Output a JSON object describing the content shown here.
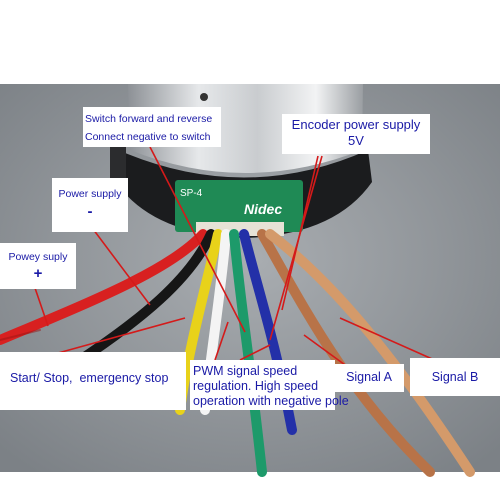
{
  "labels": {
    "switch_line1": "Switch forward and reverse",
    "switch_line2": "Connect negative to switch",
    "encoder_line1": "Encoder power supply",
    "encoder_line2": "5V",
    "power_negative_text": "Power supply",
    "power_negative_sign": "-",
    "power_positive_text": "Powey suply",
    "power_positive_sign": "+",
    "start_stop": "Start/ Stop,  emergency stop",
    "pwm_line1": "PWM signal speed",
    "pwm_line2": "regulation. High speed",
    "pwm_line3": "operation with negative pole",
    "signal_a": "Signal A",
    "signal_b": "Signal B"
  },
  "pcb": {
    "model_text": "SP-4",
    "brand_text": "Nidec"
  },
  "colors": {
    "label_text": "#1a1aa6",
    "arrow": "#d41a1a",
    "background": "#8f9499",
    "pcb": "#1f8a55"
  },
  "wires": [
    "red",
    "black",
    "yellow",
    "white",
    "green",
    "blue",
    "brown",
    "tan"
  ]
}
